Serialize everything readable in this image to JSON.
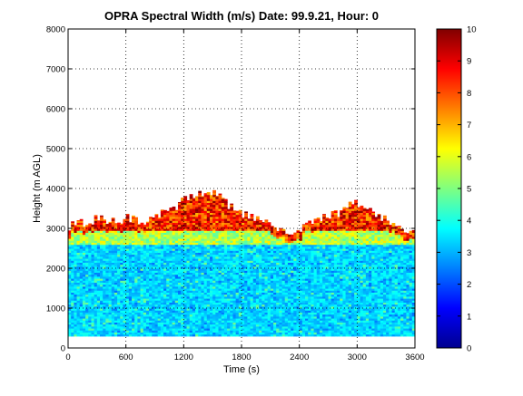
{
  "chart_data": {
    "type": "heatmap",
    "title": "OPRA Spectral Width (m/s)  Date: 99.9.21, Hour: 0",
    "xlabel": "Time (s)",
    "ylabel": "Height (m AGL)",
    "xlim": [
      0,
      3600
    ],
    "ylim": [
      0,
      8000
    ],
    "x_ticks": [
      "0",
      "600",
      "1200",
      "1800",
      "2400",
      "3000",
      "3600"
    ],
    "y_ticks": [
      "0",
      "1000",
      "2000",
      "3000",
      "4000",
      "5000",
      "6000",
      "7000",
      "8000"
    ],
    "grid": true,
    "colorbar": {
      "colormap": "jet",
      "range": [
        0,
        10
      ],
      "ticks": [
        "0",
        "1",
        "2",
        "3",
        "4",
        "5",
        "6",
        "7",
        "8",
        "9",
        "10"
      ]
    },
    "data_extent": {
      "height_min": 300,
      "height_max": 4000
    },
    "layers": [
      {
        "height_range": [
          300,
          2600
        ],
        "value_range": [
          2.8,
          4.0
        ]
      },
      {
        "height_range": [
          2600,
          2950
        ],
        "value_range": [
          4.5,
          6.5
        ]
      },
      {
        "height_range": [
          2950,
          4000
        ],
        "value_range": [
          7.0,
          10.0
        ]
      }
    ],
    "top_height_profile": {
      "time": [
        0,
        100,
        200,
        300,
        400,
        500,
        600,
        700,
        800,
        900,
        1000,
        1100,
        1200,
        1300,
        1400,
        1500,
        1600,
        1700,
        1800,
        1900,
        2000,
        2100,
        2200,
        2300,
        2400,
        2500,
        2600,
        2700,
        2800,
        2900,
        3000,
        3100,
        3200,
        3300,
        3400,
        3500,
        3600
      ],
      "height": [
        3050,
        3200,
        3100,
        3300,
        3200,
        3150,
        3250,
        3200,
        3100,
        3250,
        3400,
        3500,
        3750,
        3850,
        3800,
        3900,
        3700,
        3550,
        3400,
        3300,
        3200,
        3150,
        2950,
        2900,
        2950,
        3100,
        3200,
        3300,
        3350,
        3600,
        3650,
        3500,
        3350,
        3200,
        3000,
        2950,
        2900
      ]
    }
  }
}
